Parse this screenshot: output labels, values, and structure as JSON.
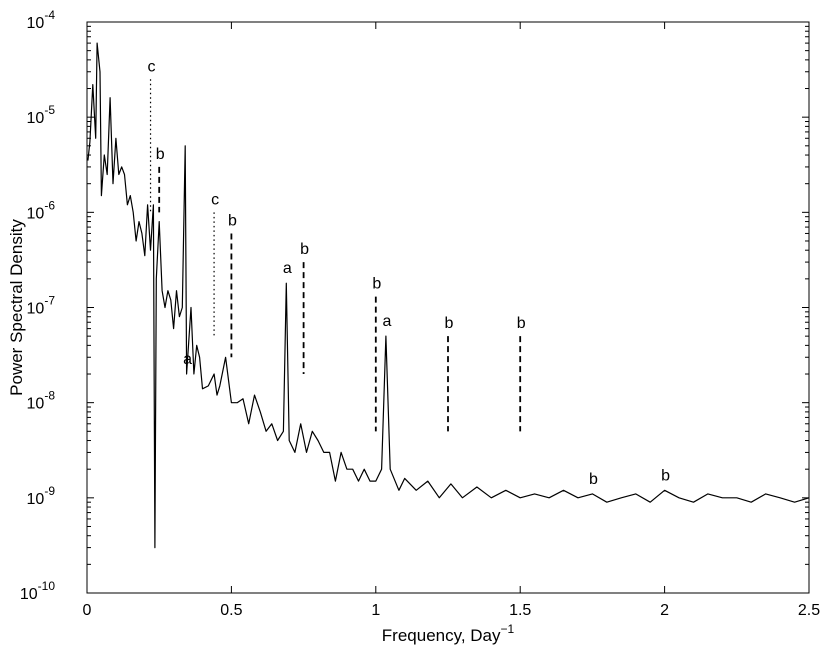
{
  "chart_data": {
    "type": "line",
    "title": "",
    "xlabel": "Frequency, Day",
    "xlabel_superscript": "−1",
    "ylabel": "Power Spectral Density",
    "xlim": [
      0,
      2.5
    ],
    "ylim": [
      1e-10,
      0.0001
    ],
    "yscale": "log",
    "grid": false,
    "x_ticks": [
      0,
      0.5,
      1,
      1.5,
      2,
      2.5
    ],
    "x_tick_labels": [
      "0",
      "0.5",
      "1",
      "1.5",
      "2",
      "2.5"
    ],
    "y_ticks": [
      1e-10,
      1e-09,
      1e-08,
      1e-07,
      1e-06,
      1e-05,
      0.0001
    ],
    "y_tick_labels": [
      {
        "base": "10",
        "exp": "-10"
      },
      {
        "base": "10",
        "exp": "-9"
      },
      {
        "base": "10",
        "exp": "-8"
      },
      {
        "base": "10",
        "exp": "-7"
      },
      {
        "base": "10",
        "exp": "-6"
      },
      {
        "base": "10",
        "exp": "-5"
      },
      {
        "base": "10",
        "exp": "-4"
      }
    ],
    "series": [
      {
        "style": "solid",
        "color": "#000000",
        "x": [
          0.003,
          0.01,
          0.02,
          0.03,
          0.035,
          0.045,
          0.05,
          0.06,
          0.07,
          0.08,
          0.09,
          0.1,
          0.11,
          0.12,
          0.13,
          0.14,
          0.15,
          0.16,
          0.17,
          0.18,
          0.19,
          0.2,
          0.21,
          0.22,
          0.23,
          0.235,
          0.24,
          0.25,
          0.26,
          0.27,
          0.28,
          0.29,
          0.3,
          0.31,
          0.32,
          0.33,
          0.34,
          0.345,
          0.36,
          0.37,
          0.38,
          0.39,
          0.4,
          0.42,
          0.44,
          0.45,
          0.46,
          0.48,
          0.5,
          0.52,
          0.54,
          0.56,
          0.58,
          0.6,
          0.62,
          0.64,
          0.66,
          0.68,
          0.69,
          0.7,
          0.72,
          0.74,
          0.76,
          0.78,
          0.8,
          0.82,
          0.84,
          0.86,
          0.88,
          0.9,
          0.92,
          0.94,
          0.96,
          0.98,
          1.0,
          1.02,
          1.035,
          1.05,
          1.08,
          1.1,
          1.14,
          1.18,
          1.22,
          1.26,
          1.3,
          1.35,
          1.4,
          1.45,
          1.5,
          1.55,
          1.6,
          1.65,
          1.7,
          1.75,
          1.8,
          1.85,
          1.9,
          1.95,
          2.0,
          2.05,
          2.1,
          2.15,
          2.2,
          2.25,
          2.3,
          2.35,
          2.4,
          2.45,
          2.5
        ],
        "y": [
          3.5e-06,
          5.5e-06,
          2.2e-05,
          6e-06,
          6e-05,
          3e-05,
          1.5e-06,
          4e-06,
          2.5e-06,
          1.6e-05,
          2e-06,
          6e-06,
          2.5e-06,
          3e-06,
          2.5e-06,
          1.2e-06,
          1.5e-06,
          1e-06,
          5e-07,
          8e-07,
          6e-07,
          3.5e-07,
          1.2e-06,
          4e-07,
          1.2e-06,
          3e-10,
          2e-07,
          8e-07,
          1.5e-07,
          1e-07,
          1.5e-07,
          1.2e-07,
          6e-08,
          1.5e-07,
          8e-08,
          1e-07,
          5e-06,
          2e-08,
          1e-07,
          2e-08,
          4e-08,
          3e-08,
          1.4e-08,
          1.5e-08,
          2e-08,
          1.2e-08,
          1.5e-08,
          3e-08,
          1e-08,
          1e-08,
          1.1e-08,
          6e-09,
          1.2e-08,
          8e-09,
          5e-09,
          6e-09,
          4e-09,
          5e-09,
          1.8e-07,
          4e-09,
          3e-09,
          6e-09,
          3e-09,
          5e-09,
          4e-09,
          3e-09,
          3e-09,
          1.5e-09,
          3e-09,
          2e-09,
          2e-09,
          1.5e-09,
          2e-09,
          1.5e-09,
          1.5e-09,
          2e-09,
          5e-08,
          2e-09,
          1.2e-09,
          1.6e-09,
          1.2e-09,
          1.5e-09,
          1e-09,
          1.4e-09,
          1e-09,
          1.3e-09,
          1e-09,
          1.2e-09,
          1e-09,
          1.1e-09,
          1e-09,
          1.2e-09,
          1e-09,
          1.1e-09,
          9e-10,
          1e-09,
          1.1e-09,
          9e-10,
          1.2e-09,
          1e-09,
          9e-10,
          1.1e-09,
          1e-09,
          1e-09,
          9e-10,
          1.1e-09,
          1e-09,
          9e-10,
          1e-09
        ]
      }
    ],
    "annotations": [
      {
        "label": "c",
        "x": 0.22,
        "line_style": "dotted",
        "line_top": 2.5e-05,
        "line_bottom": 1e-06
      },
      {
        "label": "c",
        "x": 0.44,
        "line_style": "dotted",
        "line_top": 1e-06,
        "line_bottom": 5e-08
      },
      {
        "label": "b",
        "x": 0.25,
        "line_style": "dashed",
        "line_top": 3e-06,
        "line_bottom": 1e-06
      },
      {
        "label": "b",
        "x": 0.5,
        "line_style": "dashed",
        "line_top": 6e-07,
        "line_bottom": 3e-08
      },
      {
        "label": "b",
        "x": 0.75,
        "line_style": "dashed",
        "line_top": 3e-07,
        "line_bottom": 2e-08
      },
      {
        "label": "b",
        "x": 1.0,
        "line_style": "dashed",
        "line_top": 1.3e-07,
        "line_bottom": 5e-09
      },
      {
        "label": "b",
        "x": 1.25,
        "line_style": "dashed",
        "line_top": 5e-08,
        "line_bottom": 5e-09
      },
      {
        "label": "b",
        "x": 1.5,
        "line_style": "dashed",
        "line_top": 5e-08,
        "line_bottom": 5e-09
      },
      {
        "label": "b",
        "x": 1.75,
        "line_style": "none"
      },
      {
        "label": "b",
        "x": 2.0,
        "line_style": "none"
      },
      {
        "label": "a",
        "x": 0.345,
        "line_style": "none"
      },
      {
        "label": "a",
        "x": 0.69,
        "line_style": "none"
      },
      {
        "label": "a",
        "x": 1.035,
        "line_style": "none"
      }
    ]
  }
}
